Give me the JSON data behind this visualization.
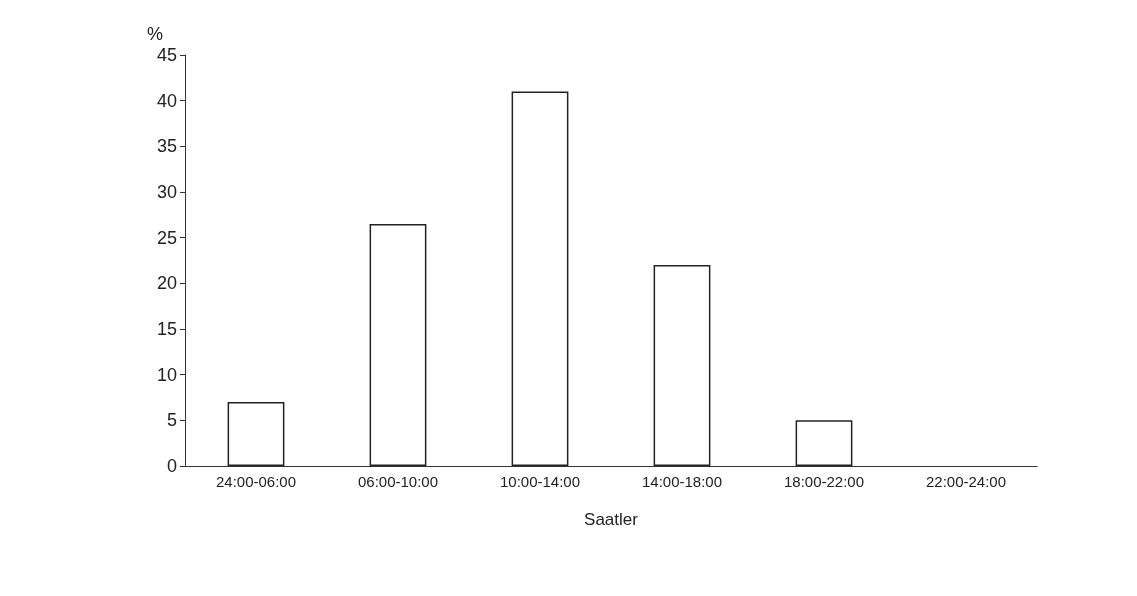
{
  "chart_data": {
    "type": "bar",
    "ylabel": "%",
    "xlabel": "Saatler",
    "categories": [
      "24:00-06:00",
      "06:00-10:00",
      "10:00-14:00",
      "14:00-18:00",
      "18:00-22:00",
      "22:00-24:00"
    ],
    "values": [
      7,
      26.5,
      41,
      22,
      5,
      0
    ],
    "color": "#ffffff",
    "ylim": [
      0,
      45
    ],
    "yticks": [
      0,
      5,
      10,
      15,
      20,
      25,
      30,
      35,
      40,
      45
    ],
    "grid": false
  }
}
